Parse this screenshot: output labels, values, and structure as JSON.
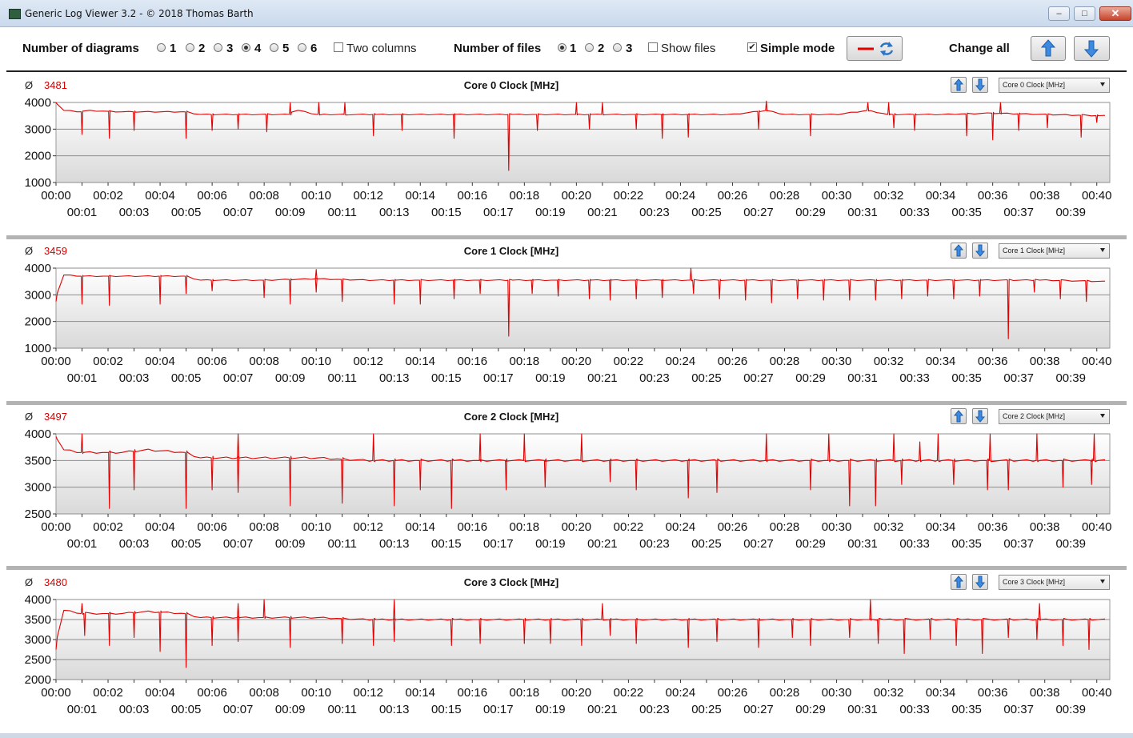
{
  "window": {
    "title": "Generic Log Viewer 3.2 - © 2018 Thomas Barth",
    "minimize": "–",
    "maximize": "□",
    "close": "✕"
  },
  "toolbar": {
    "num_diagrams_label": "Number of diagrams",
    "diagram_options": [
      "1",
      "2",
      "3",
      "4",
      "5",
      "6"
    ],
    "diagrams_selected": "4",
    "two_columns_label": "Two columns",
    "two_columns_checked": false,
    "num_files_label": "Number of files",
    "file_options": [
      "1",
      "2",
      "3"
    ],
    "files_selected": "1",
    "show_files_label": "Show files",
    "show_files_checked": false,
    "simple_mode_label": "Simple mode",
    "simple_mode_checked": true,
    "check_mark": "✔",
    "change_all_label": "Change all",
    "line_color": "#e00000",
    "icons": [
      "line-color-icon",
      "refresh-icon",
      "arrow-up-icon",
      "arrow-down-icon"
    ]
  },
  "avg_symbol": "Ø",
  "panels": [
    {
      "title": "Core 0 Clock [MHz]",
      "average": "3481",
      "selector": "Core 0 Clock [MHz]",
      "y_ticks": [
        "4000",
        "3000",
        "2000",
        "1000"
      ],
      "ylim": [
        1000,
        4000
      ]
    },
    {
      "title": "Core 1 Clock [MHz]",
      "average": "3459",
      "selector": "Core 1 Clock [MHz]",
      "y_ticks": [
        "4000",
        "3000",
        "2000",
        "1000"
      ],
      "ylim": [
        1000,
        4000
      ]
    },
    {
      "title": "Core 2 Clock [MHz]",
      "average": "3497",
      "selector": "Core 2 Clock [MHz]",
      "y_ticks": [
        "4000",
        "3500",
        "3000",
        "2500"
      ],
      "ylim": [
        2500,
        4000
      ]
    },
    {
      "title": "Core 3 Clock [MHz]",
      "average": "3480",
      "selector": "Core 3 Clock [MHz]",
      "y_ticks": [
        "4000",
        "3500",
        "3000",
        "2500",
        "2000"
      ],
      "ylim": [
        2000,
        4000
      ]
    }
  ],
  "x_ticks_even": [
    "00:00",
    "00:02",
    "00:04",
    "00:06",
    "00:08",
    "00:10",
    "00:12",
    "00:14",
    "00:16",
    "00:18",
    "00:20",
    "00:22",
    "00:24",
    "00:26",
    "00:28",
    "00:30",
    "00:32",
    "00:34",
    "00:36",
    "00:38",
    "00:40"
  ],
  "x_ticks_odd": [
    "00:01",
    "00:03",
    "00:05",
    "00:07",
    "00:09",
    "00:11",
    "00:13",
    "00:15",
    "00:17",
    "00:19",
    "00:21",
    "00:23",
    "00:25",
    "00:27",
    "00:29",
    "00:31",
    "00:33",
    "00:35",
    "00:37",
    "00:39"
  ],
  "chart_data": [
    {
      "type": "line",
      "title": "Core 0 Clock [MHz]",
      "x_unit": "minutes",
      "xlim": [
        0,
        40.5
      ],
      "ylim": [
        1000,
        4000
      ],
      "color": "#e00000",
      "base": [
        [
          0,
          4000
        ],
        [
          0.3,
          3700
        ],
        [
          1,
          3650
        ],
        [
          1.1,
          3700
        ],
        [
          2.5,
          3650
        ],
        [
          3.5,
          3650
        ],
        [
          5,
          3650
        ],
        [
          5.5,
          3550
        ],
        [
          8,
          3550
        ],
        [
          9,
          3550
        ],
        [
          9.1,
          3750
        ],
        [
          10,
          3550
        ],
        [
          11,
          3550
        ],
        [
          12,
          3550
        ],
        [
          16,
          3550
        ],
        [
          17,
          3550
        ],
        [
          18,
          3550
        ],
        [
          19,
          3550
        ],
        [
          20,
          3550
        ],
        [
          22,
          3550
        ],
        [
          24,
          3550
        ],
        [
          26,
          3550
        ],
        [
          27.3,
          3700
        ],
        [
          28,
          3550
        ],
        [
          30,
          3550
        ],
        [
          31.2,
          3700
        ],
        [
          32,
          3550
        ],
        [
          34,
          3550
        ],
        [
          36,
          3600
        ],
        [
          38,
          3550
        ],
        [
          40.3,
          3500
        ]
      ],
      "dips": [
        [
          1,
          2800
        ],
        [
          2.05,
          2650
        ],
        [
          3,
          2950
        ],
        [
          5,
          2650
        ],
        [
          6,
          2950
        ],
        [
          7,
          3000
        ],
        [
          8.1,
          2900
        ],
        [
          12.2,
          2750
        ],
        [
          13.3,
          2950
        ],
        [
          15.3,
          2650
        ],
        [
          17.4,
          1450
        ],
        [
          18.5,
          2950
        ],
        [
          20.5,
          3000
        ],
        [
          22.3,
          3000
        ],
        [
          23.3,
          2650
        ],
        [
          24.3,
          2700
        ],
        [
          27,
          3000
        ],
        [
          29,
          2750
        ],
        [
          32.2,
          3050
        ],
        [
          33,
          2950
        ],
        [
          35,
          2750
        ],
        [
          36,
          2600
        ],
        [
          37,
          2950
        ],
        [
          38.1,
          3050
        ],
        [
          39.4,
          2700
        ],
        [
          40,
          3250
        ]
      ],
      "peaks": [
        [
          9,
          4000
        ],
        [
          10.1,
          4000
        ],
        [
          11.1,
          4000
        ],
        [
          20,
          4000
        ],
        [
          21,
          4000
        ],
        [
          27.3,
          4050
        ],
        [
          31.2,
          4000
        ],
        [
          32,
          4000
        ],
        [
          36.3,
          4000
        ]
      ]
    },
    {
      "type": "line",
      "title": "Core 1 Clock [MHz]",
      "x_unit": "minutes",
      "xlim": [
        0,
        40.5
      ],
      "ylim": [
        1000,
        4000
      ],
      "color": "#e00000",
      "base": [
        [
          0,
          2750
        ],
        [
          0.15,
          3750
        ],
        [
          1,
          3700
        ],
        [
          2.5,
          3700
        ],
        [
          3.5,
          3700
        ],
        [
          5,
          3700
        ],
        [
          5.5,
          3550
        ],
        [
          8,
          3550
        ],
        [
          10,
          3600
        ],
        [
          12,
          3550
        ],
        [
          16,
          3550
        ],
        [
          18,
          3550
        ],
        [
          20,
          3550
        ],
        [
          22,
          3550
        ],
        [
          24,
          3550
        ],
        [
          26,
          3550
        ],
        [
          28,
          3550
        ],
        [
          30,
          3550
        ],
        [
          32,
          3550
        ],
        [
          34,
          3550
        ],
        [
          36,
          3550
        ],
        [
          38,
          3550
        ],
        [
          40.3,
          3500
        ]
      ],
      "dips": [
        [
          1,
          2650
        ],
        [
          2.05,
          2600
        ],
        [
          4,
          2650
        ],
        [
          5,
          3050
        ],
        [
          6,
          3150
        ],
        [
          8,
          2900
        ],
        [
          9,
          2650
        ],
        [
          10,
          3100
        ],
        [
          11,
          2750
        ],
        [
          13,
          2650
        ],
        [
          14,
          2650
        ],
        [
          15.3,
          2850
        ],
        [
          16.3,
          3050
        ],
        [
          17.4,
          1450
        ],
        [
          18.3,
          3050
        ],
        [
          19.3,
          2950
        ],
        [
          20.5,
          2850
        ],
        [
          21.3,
          2800
        ],
        [
          22.3,
          2850
        ],
        [
          23.3,
          2900
        ],
        [
          24.5,
          3050
        ],
        [
          25.5,
          2850
        ],
        [
          26.5,
          2800
        ],
        [
          27.5,
          2700
        ],
        [
          28.5,
          2850
        ],
        [
          29.5,
          2800
        ],
        [
          30.5,
          2800
        ],
        [
          31.5,
          2800
        ],
        [
          32.5,
          2850
        ],
        [
          33.5,
          2950
        ],
        [
          34.5,
          2850
        ],
        [
          35.5,
          2950
        ],
        [
          36.6,
          1350
        ],
        [
          37.6,
          3100
        ],
        [
          38.6,
          2850
        ],
        [
          39.6,
          2750
        ]
      ],
      "peaks": [
        [
          10,
          3950
        ],
        [
          24.4,
          4000
        ]
      ]
    },
    {
      "type": "line",
      "title": "Core 2 Clock [MHz]",
      "x_unit": "minutes",
      "xlim": [
        0,
        40.5
      ],
      "ylim": [
        2500,
        4000
      ],
      "color": "#e00000",
      "base": [
        [
          0,
          3950
        ],
        [
          0.3,
          3700
        ],
        [
          1,
          3650
        ],
        [
          2.5,
          3650
        ],
        [
          3.5,
          3700
        ],
        [
          5,
          3650
        ],
        [
          5.5,
          3550
        ],
        [
          8,
          3550
        ],
        [
          10,
          3550
        ],
        [
          12,
          3500
        ],
        [
          16,
          3500
        ],
        [
          18,
          3500
        ],
        [
          20,
          3500
        ],
        [
          22,
          3500
        ],
        [
          24,
          3500
        ],
        [
          26,
          3500
        ],
        [
          28,
          3500
        ],
        [
          30,
          3500
        ],
        [
          32,
          3500
        ],
        [
          34,
          3500
        ],
        [
          36,
          3500
        ],
        [
          38,
          3500
        ],
        [
          40.3,
          3500
        ]
      ],
      "dips": [
        [
          2.05,
          2600
        ],
        [
          3,
          2950
        ],
        [
          5,
          2600
        ],
        [
          6,
          2950
        ],
        [
          7,
          2900
        ],
        [
          9,
          2650
        ],
        [
          11,
          2700
        ],
        [
          13,
          2650
        ],
        [
          14,
          2950
        ],
        [
          15.2,
          2600
        ],
        [
          17.3,
          2950
        ],
        [
          18.8,
          3000
        ],
        [
          21.3,
          3100
        ],
        [
          22.3,
          2950
        ],
        [
          24.3,
          2800
        ],
        [
          25.4,
          2900
        ],
        [
          29,
          2950
        ],
        [
          30.5,
          2650
        ],
        [
          31.5,
          2650
        ],
        [
          32.5,
          3050
        ],
        [
          34.5,
          3050
        ],
        [
          35.8,
          2950
        ],
        [
          36.6,
          2950
        ],
        [
          38.7,
          3000
        ],
        [
          39.8,
          3050
        ]
      ],
      "peaks": [
        [
          1,
          4000
        ],
        [
          7,
          4000
        ],
        [
          12.2,
          4000
        ],
        [
          16.3,
          4000
        ],
        [
          18,
          4000
        ],
        [
          20.2,
          4000
        ],
        [
          27.3,
          4000
        ],
        [
          29.7,
          4000
        ],
        [
          32.2,
          4000
        ],
        [
          33.2,
          3850
        ],
        [
          33.9,
          4000
        ],
        [
          35.9,
          4000
        ],
        [
          37.7,
          4000
        ],
        [
          39.9,
          4000
        ]
      ]
    },
    {
      "type": "line",
      "title": "Core 3 Clock [MHz]",
      "x_unit": "minutes",
      "xlim": [
        0,
        40.5
      ],
      "ylim": [
        2000,
        4000
      ],
      "color": "#e00000",
      "base": [
        [
          0,
          2750
        ],
        [
          0.15,
          3750
        ],
        [
          1,
          3650
        ],
        [
          2.5,
          3650
        ],
        [
          3.5,
          3700
        ],
        [
          5,
          3650
        ],
        [
          5.5,
          3550
        ],
        [
          8,
          3550
        ],
        [
          10,
          3550
        ],
        [
          12,
          3500
        ],
        [
          16,
          3500
        ],
        [
          18,
          3500
        ],
        [
          20,
          3500
        ],
        [
          22,
          3500
        ],
        [
          24,
          3500
        ],
        [
          26,
          3500
        ],
        [
          28,
          3500
        ],
        [
          30,
          3500
        ],
        [
          32,
          3500
        ],
        [
          34,
          3500
        ],
        [
          36,
          3500
        ],
        [
          38,
          3500
        ],
        [
          40.3,
          3500
        ]
      ],
      "dips": [
        [
          1.1,
          3100
        ],
        [
          2.05,
          2850
        ],
        [
          3,
          3050
        ],
        [
          4,
          2700
        ],
        [
          5,
          2300
        ],
        [
          6,
          2850
        ],
        [
          7,
          2950
        ],
        [
          9,
          2800
        ],
        [
          11,
          2900
        ],
        [
          12.2,
          2850
        ],
        [
          13,
          2950
        ],
        [
          15.2,
          2850
        ],
        [
          16.3,
          2900
        ],
        [
          18,
          2900
        ],
        [
          19,
          2900
        ],
        [
          20.2,
          2850
        ],
        [
          21.3,
          3100
        ],
        [
          22.3,
          2900
        ],
        [
          24.3,
          2800
        ],
        [
          25.4,
          2950
        ],
        [
          27,
          2800
        ],
        [
          28.3,
          3050
        ],
        [
          29,
          2850
        ],
        [
          30.5,
          3050
        ],
        [
          31.6,
          2900
        ],
        [
          32.6,
          2650
        ],
        [
          33.6,
          3000
        ],
        [
          34.6,
          2850
        ],
        [
          35.6,
          2650
        ],
        [
          36.6,
          3050
        ],
        [
          37.7,
          3000
        ],
        [
          38.7,
          2850
        ],
        [
          39.7,
          2750
        ]
      ],
      "peaks": [
        [
          1,
          3900
        ],
        [
          7,
          3900
        ],
        [
          8,
          4000
        ],
        [
          13,
          4000
        ],
        [
          21,
          3900
        ],
        [
          31.3,
          4000
        ],
        [
          37.8,
          3900
        ]
      ]
    }
  ]
}
